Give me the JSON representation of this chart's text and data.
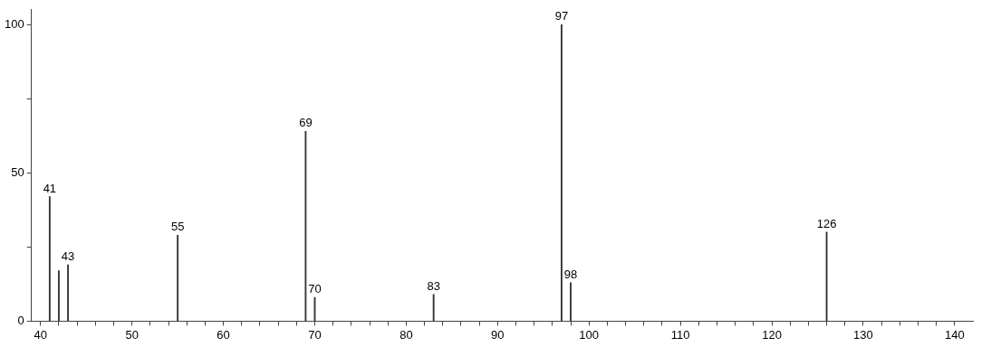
{
  "chart_data": {
    "type": "bar",
    "x": [
      41,
      42,
      43,
      55,
      69,
      70,
      83,
      97,
      98,
      126
    ],
    "values": [
      42,
      17,
      19,
      29,
      64,
      8,
      9,
      100,
      13,
      30
    ],
    "color": "#333333",
    "xlim": [
      39,
      142
    ],
    "ylim": [
      0,
      105
    ],
    "xticks": [
      40,
      {
        "value": 42,
        "label": null
      },
      {
        "value": 44,
        "label": null
      },
      {
        "value": 46,
        "label": null
      },
      {
        "value": 48,
        "label": null
      },
      50,
      {
        "value": 52,
        "label": null
      },
      {
        "value": 54,
        "label": null
      },
      {
        "value": 56,
        "label": null
      },
      {
        "value": 58,
        "label": null
      },
      60,
      {
        "value": 62,
        "label": null
      },
      {
        "value": 64,
        "label": null
      },
      {
        "value": 66,
        "label": null
      },
      {
        "value": 68,
        "label": null
      },
      70,
      {
        "value": 72,
        "label": null
      },
      {
        "value": 74,
        "label": null
      },
      {
        "value": 76,
        "label": null
      },
      {
        "value": 78,
        "label": null
      },
      80,
      {
        "value": 82,
        "label": null
      },
      {
        "value": 84,
        "label": null
      },
      {
        "value": 86,
        "label": null
      },
      {
        "value": 88,
        "label": null
      },
      90,
      {
        "value": 92,
        "label": null
      },
      {
        "value": 94,
        "label": null
      },
      {
        "value": 96,
        "label": null
      },
      {
        "value": 98,
        "label": null
      },
      100,
      {
        "value": 102,
        "label": null
      },
      {
        "value": 104,
        "label": null
      },
      {
        "value": 106,
        "label": null
      },
      {
        "value": 108,
        "label": null
      },
      110,
      {
        "value": 112,
        "label": null
      },
      {
        "value": 114,
        "label": null
      },
      {
        "value": 116,
        "label": null
      },
      {
        "value": 118,
        "label": null
      },
      120,
      {
        "value": 122,
        "label": null
      },
      {
        "value": 124,
        "label": null
      },
      {
        "value": 126,
        "label": null
      },
      {
        "value": 128,
        "label": null
      },
      130,
      {
        "value": 132,
        "label": null
      },
      {
        "value": 134,
        "label": null
      },
      {
        "value": 136,
        "label": null
      },
      {
        "value": 138,
        "label": null
      },
      140
    ],
    "yticks": [
      0,
      {
        "value": 25,
        "label": null
      },
      50,
      {
        "value": 75,
        "label": null
      },
      100
    ],
    "grid": false,
    "legend": false,
    "annotations": [
      {
        "text": "41",
        "x": 41,
        "y": 42
      },
      {
        "text": "43",
        "x": 43,
        "y": 19
      },
      {
        "text": "55",
        "x": 55,
        "y": 29
      },
      {
        "text": "69",
        "x": 69,
        "y": 64
      },
      {
        "text": "70",
        "x": 70,
        "y": 8
      },
      {
        "text": "83",
        "x": 83,
        "y": 9
      },
      {
        "text": "97",
        "x": 97,
        "y": 100
      },
      {
        "text": "98",
        "x": 98,
        "y": 13
      },
      {
        "text": "126",
        "x": 126,
        "y": 30
      }
    ]
  }
}
